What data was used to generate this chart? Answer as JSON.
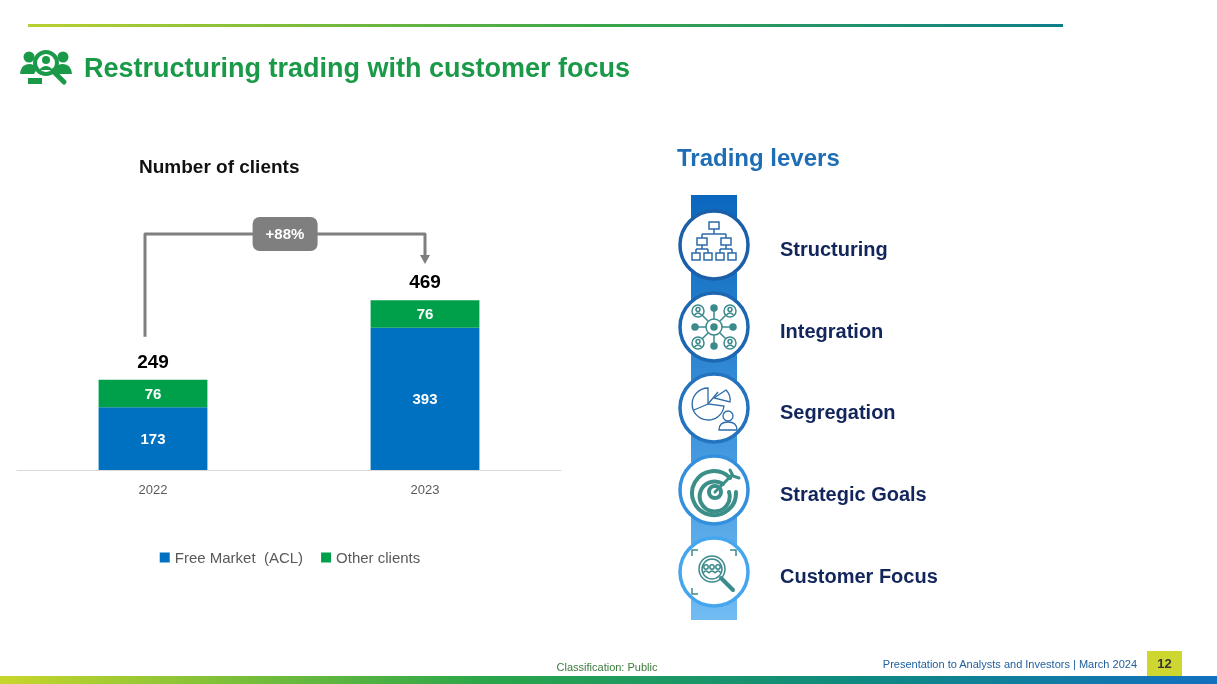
{
  "chart_data": [
    {
      "type": "bar",
      "title": "Number of clients",
      "categories": [
        "2022",
        "2023"
      ],
      "series": [
        {
          "name": "Free Market  (ACL)",
          "color": "#0070c0",
          "values": [
            173,
            393
          ]
        },
        {
          "name": "Other clients",
          "color": "#00a04b",
          "values": [
            76,
            76
          ]
        }
      ],
      "stacked": true,
      "data_labels": true,
      "totals": [
        "249",
        "469"
      ],
      "legend": "bottom",
      "annotations": [
        "+88%",
        "Restructuring trading with customer focus",
        "Classification: Public",
        "Presentation to Analysts and Investors | March 2024",
        "12"
      ]
    },
    {
      "type": "other",
      "title": "Trading levers",
      "annotations": [
        "Structuring",
        "Integration",
        "Segregation",
        "Strategic Goals",
        "Customer Focus"
      ]
    }
  ]
}
